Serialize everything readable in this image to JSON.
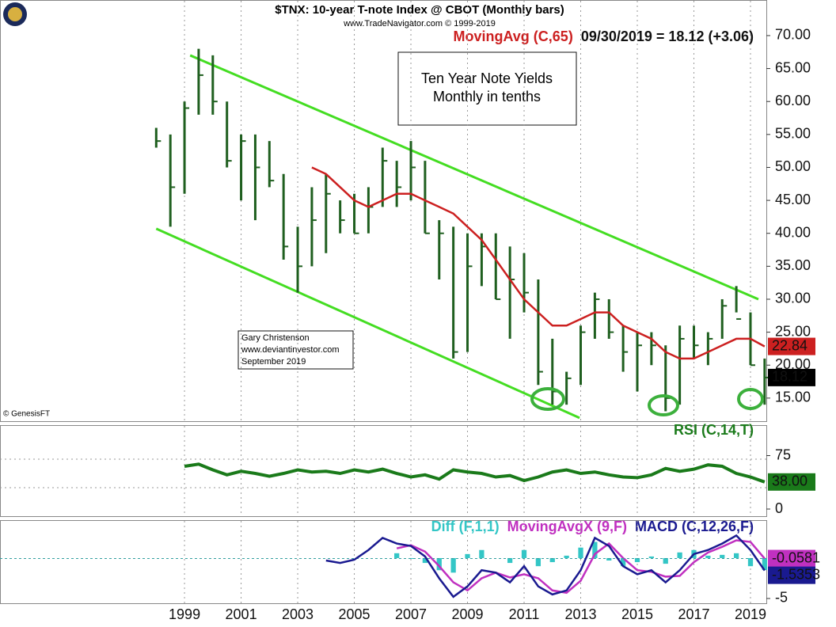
{
  "chart_data": [
    {
      "type": "ohlc",
      "title": "$TNX:  10-year T-note Index @ CBOT  (Monthly bars)",
      "subtitle": "www.TradeNavigator.com © 1999-2019",
      "status": "09/30/2019 = 18.12 (+3.06)",
      "annotation": [
        "Ten Year Note Yields",
        "Monthly in tenths"
      ],
      "credit": [
        "Gary Christenson",
        "www.deviantinvestor.com",
        "September 2019"
      ],
      "source": "© GenesisFT",
      "color": "#1f5f1f",
      "x": [
        1998.0,
        1998.5,
        1999.0,
        1999.5,
        2000.0,
        2000.5,
        2001.0,
        2001.5,
        2002.0,
        2002.5,
        2003.0,
        2003.5,
        2004.0,
        2004.5,
        2005.0,
        2005.5,
        2006.0,
        2006.5,
        2007.0,
        2007.5,
        2008.0,
        2008.5,
        2009.0,
        2009.5,
        2010.0,
        2010.5,
        2011.0,
        2011.5,
        2012.0,
        2012.5,
        2013.0,
        2013.5,
        2014.0,
        2014.5,
        2015.0,
        2015.5,
        2016.0,
        2016.5,
        2017.0,
        2017.5,
        2018.0,
        2018.5,
        2019.0,
        2019.5
      ],
      "high": [
        56,
        55,
        60,
        68,
        67,
        60,
        55,
        55,
        54,
        49,
        41,
        47,
        49,
        45,
        46,
        47,
        53,
        51,
        54,
        51,
        42,
        41,
        40,
        40,
        40,
        38,
        37,
        33,
        24,
        19,
        26,
        31,
        30,
        26,
        25,
        25,
        23,
        26,
        26,
        25,
        30,
        32,
        28,
        21
      ],
      "low": [
        53,
        41,
        46,
        58,
        58,
        50,
        45,
        42,
        47,
        36,
        31,
        35,
        37,
        40,
        40,
        40,
        44,
        44,
        45,
        40,
        33,
        21,
        22,
        32,
        30,
        24,
        28,
        17,
        14,
        14,
        17,
        24,
        24,
        19,
        16,
        20,
        13,
        14,
        21,
        20,
        24,
        28,
        20,
        14
      ],
      "close": [
        54,
        47,
        59,
        64,
        60,
        51,
        54,
        50,
        48,
        38,
        35,
        42,
        46,
        42,
        40,
        44,
        51,
        47,
        50,
        40,
        40,
        22,
        35,
        38,
        30,
        33,
        31,
        19,
        16,
        18,
        25,
        30,
        25,
        22,
        23,
        23,
        15,
        24,
        23,
        24,
        29,
        27,
        20,
        18.12
      ],
      "series": [
        {
          "name": "MovingAvg (C,65)",
          "color": "#cc2020",
          "values": [
            null,
            null,
            null,
            null,
            null,
            null,
            null,
            null,
            null,
            null,
            null,
            50,
            49,
            47,
            45,
            44,
            45,
            46,
            46,
            45,
            44,
            43,
            41,
            39,
            36,
            33,
            30,
            28,
            26,
            26,
            27,
            28,
            28,
            26,
            25,
            24,
            22,
            21,
            21,
            22,
            23,
            24,
            24,
            22.84
          ]
        }
      ],
      "trend_lines": [
        {
          "color": "#44dd22",
          "x": [
            1999.2,
            2019.28
          ],
          "y": [
            67,
            30
          ]
        },
        {
          "color": "#44dd22",
          "x": [
            1998.0,
            2012.96
          ],
          "y": [
            40.7,
            12
          ]
        }
      ],
      "xlim": [
        1992.48,
        2019.56
      ],
      "xticks": [
        1999,
        2001,
        2003,
        2005,
        2007,
        2009,
        2011,
        2013,
        2015,
        2017,
        2019
      ],
      "ylim": [
        11.5,
        75.4
      ],
      "yticks": [
        {
          "value": 15,
          "label": "15.00"
        },
        {
          "value": 20,
          "label": "20.00"
        },
        {
          "value": 25,
          "label": "25.00"
        },
        {
          "value": 30,
          "label": "30.00"
        },
        {
          "value": 35,
          "label": "35.00"
        },
        {
          "value": 40,
          "label": "40.00"
        },
        {
          "value": 45,
          "label": "45.00"
        },
        {
          "value": 50,
          "label": "50.00"
        },
        {
          "value": 55,
          "label": "55.00"
        },
        {
          "value": 60,
          "label": "60.00"
        },
        {
          "value": 65,
          "label": "65.00"
        },
        {
          "value": 70,
          "label": "70.00"
        }
      ]
    },
    {
      "type": "line",
      "series": [
        {
          "name": "RSI (C,14,T)",
          "color": "#1a7a1a",
          "values": [
            null,
            null,
            60,
            63,
            55,
            48,
            53,
            50,
            46,
            50,
            55,
            52,
            53,
            50,
            55,
            52,
            56,
            50,
            45,
            48,
            42,
            55,
            52,
            50,
            45,
            47,
            40,
            45,
            52,
            55,
            50,
            52,
            48,
            45,
            44,
            48,
            57,
            53,
            56,
            62,
            60,
            50,
            45,
            38
          ],
          "value_labels": [
            null,
            null,
            null,
            null,
            null,
            null,
            null,
            null,
            null,
            null,
            null,
            null,
            null,
            null,
            null,
            null,
            null,
            null,
            null,
            null,
            null,
            null,
            null,
            null,
            null,
            null,
            null,
            null,
            null,
            null,
            null,
            null,
            null,
            null,
            null,
            null,
            null,
            null,
            null,
            null,
            null,
            null,
            null,
            "38.00"
          ]
        }
      ],
      "hlines": [
        70,
        30
      ],
      "ylim": [
        -10,
        117.8
      ],
      "yticks": [
        0,
        75
      ]
    },
    {
      "type": "macd",
      "series": [
        {
          "name": "Diff (F,1,1)",
          "color": "#33c6c6",
          "kind": "bar",
          "values": [
            null,
            null,
            null,
            null,
            null,
            null,
            null,
            null,
            null,
            null,
            null,
            null,
            null,
            null,
            null,
            null,
            null,
            0.6,
            -0.1,
            -0.6,
            -1.5,
            -1.8,
            0.5,
            1.0,
            0.0,
            -0.6,
            1.0,
            -1.0,
            -0.5,
            0.3,
            1.3,
            2.0,
            -0.3,
            -1.0,
            -0.5,
            0.2,
            -0.7,
            0.7,
            1.0,
            0.3,
            0.4,
            0.6,
            -1.0,
            -1.48
          ]
        },
        {
          "name": "MovingAvgX (9,F)",
          "color": "#c030c0",
          "kind": "line",
          "values": [
            null,
            null,
            null,
            null,
            null,
            null,
            null,
            null,
            null,
            null,
            null,
            null,
            null,
            null,
            null,
            null,
            null,
            1.2,
            1.6,
            0.8,
            -1.0,
            -3.0,
            -4.0,
            -2.5,
            -1.8,
            -2.4,
            -2.0,
            -2.5,
            -4.0,
            -4.3,
            -2.8,
            0.5,
            1.8,
            0.0,
            -1.5,
            -1.7,
            -2.3,
            -2.2,
            -0.5,
            0.7,
            1.4,
            2.2,
            2.0,
            -0.0581
          ]
        },
        {
          "name": "MACD (C,12,26,F)",
          "color": "#1a1a90",
          "kind": "line",
          "values": [
            null,
            null,
            null,
            null,
            null,
            null,
            null,
            null,
            null,
            null,
            null,
            null,
            -0.3,
            -0.6,
            -0.2,
            1.0,
            2.5,
            1.8,
            1.5,
            0.2,
            -2.5,
            -4.8,
            -3.5,
            -1.5,
            -1.8,
            -3.0,
            -1.0,
            -3.5,
            -4.5,
            -4.0,
            -1.5,
            2.5,
            1.5,
            -1.0,
            -2.0,
            -1.5,
            -3.0,
            -1.5,
            0.5,
            1.0,
            1.8,
            2.8,
            1.0,
            -1.5353
          ]
        }
      ],
      "ylim": [
        -5.59,
        4.7
      ],
      "yticks": [
        -5
      ]
    }
  ]
}
